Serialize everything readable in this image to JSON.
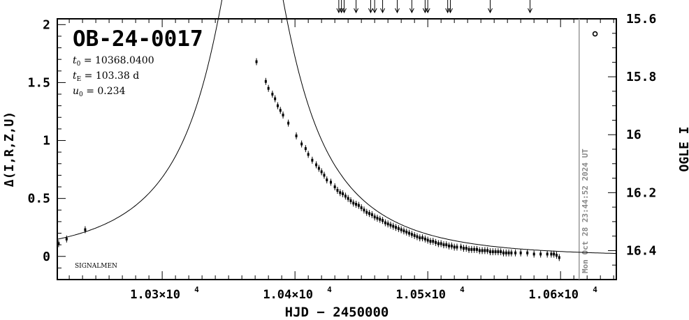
{
  "chart_data": {
    "type": "scatter",
    "title": "OB-24-0017",
    "params": [
      {
        "sym": "t",
        "sub": "0",
        "text": " = 10368.0400"
      },
      {
        "sym": "t",
        "sub": "E",
        "text": " = 103.38 d"
      },
      {
        "sym": "u",
        "sub": "0",
        "text": " = 0.234"
      }
    ],
    "model": {
      "t0": 10368.04,
      "tE": 103.38,
      "u0": 0.234
    },
    "corner_label": "SIGNALMEN",
    "date_label": "Mon Oct 28 23:44:52 2024 UT",
    "date_line_x": 10614,
    "xlabel": "HJD − 2450000",
    "ylabel_left": "Δ(I,R,Z,U)",
    "ylabel_right": "OGLE I",
    "xlim": [
      10221,
      10642
    ],
    "ylim": [
      -0.2,
      2.05
    ],
    "right_ylim": [
      16.5,
      15.6
    ],
    "x_ticks": [
      {
        "value": 10300,
        "mant": "1.03×10",
        "exp": "4"
      },
      {
        "value": 10400,
        "mant": "1.04×10",
        "exp": "4"
      },
      {
        "value": 10500,
        "mant": "1.05×10",
        "exp": "4"
      },
      {
        "value": 10600,
        "mant": "1.06×10",
        "exp": "4"
      }
    ],
    "y_ticks": [
      {
        "value": 0,
        "label": "0"
      },
      {
        "value": 0.5,
        "label": "0.5"
      },
      {
        "value": 1,
        "label": "1"
      },
      {
        "value": 1.5,
        "label": "1.5"
      },
      {
        "value": 2,
        "label": "2"
      }
    ],
    "right_ticks": [
      {
        "value": 15.6,
        "label": "15.6"
      },
      {
        "value": 15.8,
        "label": "15.8"
      },
      {
        "value": 16,
        "label": "16"
      },
      {
        "value": 16.2,
        "label": "16.2"
      },
      {
        "value": 16.4,
        "label": "16.4"
      }
    ],
    "arrows_x": [
      10433,
      10435,
      10437,
      10446,
      10457,
      10460,
      10466,
      10477,
      10488,
      10498,
      10500,
      10515,
      10517,
      10547,
      10577
    ],
    "outlier": {
      "x": 10626,
      "y": 1.92
    },
    "points": [
      [
        10222,
        0.11
      ],
      [
        10228,
        0.15
      ],
      [
        10242,
        0.23
      ],
      [
        10371,
        1.68
      ],
      [
        10378,
        1.51
      ],
      [
        10380,
        1.45
      ],
      [
        10383,
        1.4
      ],
      [
        10385,
        1.36
      ],
      [
        10387,
        1.3
      ],
      [
        10389,
        1.26
      ],
      [
        10391,
        1.22
      ],
      [
        10395,
        1.15
      ],
      [
        10401,
        1.04
      ],
      [
        10405,
        0.97
      ],
      [
        10408,
        0.93
      ],
      [
        10410,
        0.88
      ],
      [
        10413,
        0.83
      ],
      [
        10416,
        0.79
      ],
      [
        10418,
        0.76
      ],
      [
        10420,
        0.73
      ],
      [
        10422,
        0.7
      ],
      [
        10424,
        0.66
      ],
      [
        10427,
        0.64
      ],
      [
        10430,
        0.6
      ],
      [
        10432,
        0.57
      ],
      [
        10434,
        0.55
      ],
      [
        10436,
        0.54
      ],
      [
        10438,
        0.52
      ],
      [
        10440,
        0.5
      ],
      [
        10442,
        0.48
      ],
      [
        10444,
        0.46
      ],
      [
        10446,
        0.45
      ],
      [
        10448,
        0.44
      ],
      [
        10450,
        0.42
      ],
      [
        10452,
        0.4
      ],
      [
        10454,
        0.38
      ],
      [
        10456,
        0.37
      ],
      [
        10458,
        0.36
      ],
      [
        10460,
        0.34
      ],
      [
        10462,
        0.33
      ],
      [
        10464,
        0.32
      ],
      [
        10466,
        0.31
      ],
      [
        10468,
        0.29
      ],
      [
        10470,
        0.28
      ],
      [
        10472,
        0.27
      ],
      [
        10474,
        0.26
      ],
      [
        10476,
        0.25
      ],
      [
        10478,
        0.24
      ],
      [
        10480,
        0.23
      ],
      [
        10482,
        0.22
      ],
      [
        10484,
        0.21
      ],
      [
        10486,
        0.2
      ],
      [
        10488,
        0.19
      ],
      [
        10490,
        0.18
      ],
      [
        10492,
        0.17
      ],
      [
        10494,
        0.16
      ],
      [
        10496,
        0.16
      ],
      [
        10498,
        0.15
      ],
      [
        10500,
        0.14
      ],
      [
        10502,
        0.13
      ],
      [
        10504,
        0.13
      ],
      [
        10506,
        0.12
      ],
      [
        10508,
        0.11
      ],
      [
        10510,
        0.11
      ],
      [
        10512,
        0.1
      ],
      [
        10514,
        0.1
      ],
      [
        10516,
        0.09
      ],
      [
        10518,
        0.09
      ],
      [
        10520,
        0.08
      ],
      [
        10522,
        0.08
      ],
      [
        10525,
        0.08
      ],
      [
        10527,
        0.07
      ],
      [
        10529,
        0.07
      ],
      [
        10531,
        0.06
      ],
      [
        10533,
        0.06
      ],
      [
        10535,
        0.06
      ],
      [
        10537,
        0.06
      ],
      [
        10539,
        0.05
      ],
      [
        10541,
        0.05
      ],
      [
        10543,
        0.05
      ],
      [
        10545,
        0.05
      ],
      [
        10547,
        0.04
      ],
      [
        10549,
        0.04
      ],
      [
        10551,
        0.04
      ],
      [
        10553,
        0.04
      ],
      [
        10555,
        0.04
      ],
      [
        10557,
        0.03
      ],
      [
        10559,
        0.03
      ],
      [
        10561,
        0.03
      ],
      [
        10563,
        0.03
      ],
      [
        10566,
        0.03
      ],
      [
        10570,
        0.03
      ],
      [
        10575,
        0.03
      ],
      [
        10580,
        0.02
      ],
      [
        10585,
        0.02
      ],
      [
        10590,
        0.02
      ],
      [
        10593,
        0.02
      ],
      [
        10595,
        0.02
      ],
      [
        10597,
        0.01
      ],
      [
        10599,
        -0.01
      ]
    ]
  }
}
